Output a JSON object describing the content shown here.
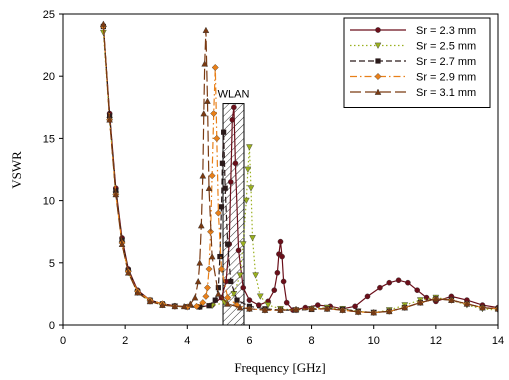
{
  "chart_data": {
    "type": "line",
    "xlabel": "Frequency [GHz]",
    "ylabel": "VSWR",
    "xlim": [
      0,
      14
    ],
    "ylim": [
      0,
      25
    ],
    "xticks": [
      0,
      2,
      4,
      6,
      8,
      10,
      12,
      14
    ],
    "yticks": [
      0,
      5,
      10,
      15,
      20,
      25
    ],
    "grid": false,
    "legend_position": "top-right",
    "band": {
      "label": "WLAN",
      "x_range": [
        5.15,
        5.825
      ],
      "y_top": 17.8
    },
    "series": [
      {
        "name": "Sr = 2.3 mm",
        "color": "#6b0f1a",
        "dash": "solid",
        "marker": "circle",
        "x": [
          1.3,
          1.5,
          1.7,
          1.9,
          2.1,
          2.4,
          2.8,
          3.2,
          3.6,
          4.0,
          4.4,
          4.8,
          5.1,
          5.25,
          5.35,
          5.4,
          5.45,
          5.5,
          5.55,
          5.65,
          5.8,
          6.0,
          6.3,
          6.6,
          6.8,
          6.9,
          6.95,
          7.0,
          7.05,
          7.1,
          7.2,
          7.4,
          7.8,
          8.2,
          8.6,
          9.0,
          9.4,
          9.8,
          10.2,
          10.5,
          10.8,
          11.1,
          11.4,
          11.7,
          12.0,
          12.5,
          13.0,
          13.5,
          14.0
        ],
        "y": [
          24.0,
          17.0,
          11.0,
          7.0,
          4.5,
          2.8,
          2.0,
          1.7,
          1.55,
          1.45,
          1.45,
          1.6,
          2.2,
          3.5,
          6.5,
          11.5,
          16.5,
          17.5,
          13.0,
          6.0,
          3.0,
          2.0,
          1.6,
          1.9,
          2.8,
          4.2,
          5.7,
          6.7,
          5.5,
          3.5,
          1.8,
          1.2,
          1.4,
          1.6,
          1.5,
          1.3,
          1.5,
          2.3,
          3.0,
          3.4,
          3.6,
          3.4,
          2.8,
          2.2,
          1.9,
          2.3,
          2.0,
          1.6,
          1.4
        ]
      },
      {
        "name": "Sr = 2.5 mm",
        "color": "#9ab01f",
        "dash": "dotted",
        "marker": "triangle-down",
        "x": [
          1.3,
          1.5,
          1.7,
          1.9,
          2.1,
          2.4,
          2.8,
          3.2,
          3.6,
          4.0,
          4.4,
          4.8,
          5.2,
          5.5,
          5.7,
          5.8,
          5.9,
          5.95,
          6.0,
          6.05,
          6.1,
          6.2,
          6.35,
          6.6,
          7.0,
          7.5,
          8.0,
          8.5,
          9.0,
          9.5,
          10.0,
          10.5,
          11.0,
          11.5,
          12.0,
          12.5,
          13.0,
          13.5,
          14.0
        ],
        "y": [
          23.5,
          16.5,
          10.5,
          6.5,
          4.2,
          2.6,
          1.9,
          1.6,
          1.5,
          1.45,
          1.45,
          1.55,
          1.8,
          2.5,
          4.0,
          6.5,
          10.0,
          12.5,
          14.3,
          11.0,
          7.0,
          4.0,
          2.3,
          1.6,
          1.3,
          1.2,
          1.3,
          1.4,
          1.3,
          1.1,
          1.0,
          1.2,
          1.6,
          2.0,
          2.2,
          2.0,
          1.6,
          1.3,
          1.2
        ]
      },
      {
        "name": "Sr = 2.7 mm",
        "color": "#2a1a1a",
        "dash": "dashed",
        "marker": "square",
        "x": [
          1.3,
          1.5,
          1.7,
          1.9,
          2.1,
          2.4,
          2.8,
          3.2,
          3.6,
          4.0,
          4.4,
          4.7,
          4.9,
          5.0,
          5.05,
          5.1,
          5.13,
          5.17,
          5.22,
          5.3,
          5.4,
          5.6,
          6.0,
          6.5,
          7.0,
          7.5,
          8.0,
          8.5,
          9.0,
          9.5,
          10.0,
          10.5,
          11.0,
          11.5,
          12.0,
          12.5,
          13.0,
          13.5,
          14.0
        ],
        "y": [
          24.0,
          16.8,
          10.8,
          6.8,
          4.4,
          2.7,
          2.0,
          1.7,
          1.5,
          1.45,
          1.45,
          1.55,
          2.0,
          3.0,
          5.5,
          9.5,
          13.0,
          15.5,
          11.0,
          6.5,
          3.5,
          2.0,
          1.5,
          1.3,
          1.2,
          1.2,
          1.25,
          1.3,
          1.25,
          1.1,
          1.0,
          1.1,
          1.4,
          1.8,
          2.1,
          2.0,
          1.7,
          1.4,
          1.3
        ]
      },
      {
        "name": "Sr = 2.9 mm",
        "color": "#e8801a",
        "dash": "dashdot",
        "marker": "diamond",
        "x": [
          1.3,
          1.5,
          1.7,
          1.9,
          2.1,
          2.4,
          2.8,
          3.2,
          3.6,
          4.0,
          4.3,
          4.5,
          4.6,
          4.65,
          4.7,
          4.75,
          4.8,
          4.85,
          4.9,
          4.95,
          5.0,
          5.1,
          5.3,
          5.6,
          6.0,
          6.5,
          7.0,
          7.5,
          8.0,
          8.5,
          9.0,
          9.5,
          10.0,
          10.5,
          11.0,
          11.5,
          12.0,
          12.5,
          13.0,
          13.5,
          14.0
        ],
        "y": [
          24.0,
          16.5,
          10.5,
          6.6,
          4.3,
          2.7,
          2.0,
          1.7,
          1.5,
          1.45,
          1.5,
          1.8,
          2.3,
          3.0,
          4.5,
          7.5,
          12.0,
          17.0,
          20.7,
          15.0,
          9.0,
          4.5,
          2.2,
          1.6,
          1.3,
          1.2,
          1.2,
          1.25,
          1.3,
          1.3,
          1.2,
          1.05,
          1.0,
          1.1,
          1.4,
          1.8,
          2.1,
          2.0,
          1.7,
          1.4,
          1.3
        ]
      },
      {
        "name": "Sr = 3.1 mm",
        "color": "#7a3a12",
        "dash": "longdash",
        "marker": "triangle-up",
        "x": [
          1.3,
          1.5,
          1.7,
          1.9,
          2.1,
          2.4,
          2.8,
          3.2,
          3.6,
          3.9,
          4.1,
          4.25,
          4.35,
          4.4,
          4.45,
          4.5,
          4.53,
          4.56,
          4.6,
          4.65,
          4.7,
          4.8,
          5.0,
          5.3,
          5.7,
          6.0,
          6.5,
          7.0,
          7.5,
          8.0,
          8.5,
          9.0,
          9.5,
          10.0,
          10.5,
          11.0,
          11.5,
          12.0,
          12.5,
          13.0,
          13.5,
          14.0
        ],
        "y": [
          24.2,
          16.5,
          10.5,
          6.5,
          4.2,
          2.6,
          1.9,
          1.6,
          1.5,
          1.5,
          1.7,
          2.2,
          3.5,
          5.0,
          8.0,
          12.0,
          17.0,
          21.0,
          23.7,
          18.0,
          11.0,
          5.5,
          2.5,
          1.7,
          1.4,
          1.3,
          1.2,
          1.2,
          1.25,
          1.3,
          1.3,
          1.2,
          1.05,
          1.0,
          1.1,
          1.4,
          1.8,
          2.1,
          2.0,
          1.7,
          1.4,
          1.3
        ]
      }
    ]
  }
}
